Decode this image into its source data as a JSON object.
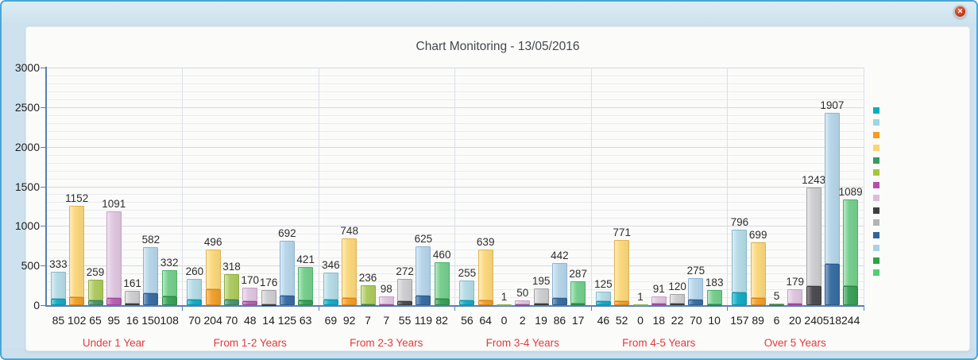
{
  "window": {
    "close_glyph": "✕"
  },
  "chart_data": {
    "type": "bar",
    "title": "Chart Monitoring - 13/05/2016",
    "subtitle": "",
    "xlabel": "",
    "ylabel": "",
    "ylim": [
      0,
      3000
    ],
    "ytick_major": [
      0,
      500,
      1000,
      1500,
      2000,
      2500,
      3000
    ],
    "ytick_minor_step": 100,
    "grid": "on",
    "legend_position": "right",
    "stacked": true,
    "categories": [
      "Under 1 Year",
      "From 1-2 Years",
      "From 2-3 Years",
      "From 3-4 Years",
      "From 4-5 Years",
      "Over 5 Years"
    ],
    "bars_per_group": 7,
    "groups": [
      {
        "label": "Under 1 Year",
        "bars": [
          {
            "bottom": 85,
            "top": 333
          },
          {
            "bottom": 102,
            "top": 1152
          },
          {
            "bottom": 65,
            "top": 259
          },
          {
            "bottom": 95,
            "top": 1091
          },
          {
            "bottom": 16,
            "top": 161
          },
          {
            "bottom": 150,
            "top": 582
          },
          {
            "bottom": 108,
            "top": 332
          }
        ]
      },
      {
        "label": "From 1-2 Years",
        "bars": [
          {
            "bottom": 70,
            "top": 260
          },
          {
            "bottom": 204,
            "top": 496
          },
          {
            "bottom": 70,
            "top": 318
          },
          {
            "bottom": 48,
            "top": 170
          },
          {
            "bottom": 14,
            "top": 176
          },
          {
            "bottom": 125,
            "top": 692
          },
          {
            "bottom": 63,
            "top": 421
          }
        ]
      },
      {
        "label": "From 2-3 Years",
        "bars": [
          {
            "bottom": 69,
            "top": 346
          },
          {
            "bottom": 92,
            "top": 748
          },
          {
            "bottom": 7,
            "top": 236
          },
          {
            "bottom": 7,
            "top": 98
          },
          {
            "bottom": 55,
            "top": 272
          },
          {
            "bottom": 119,
            "top": 625
          },
          {
            "bottom": 82,
            "top": 460
          }
        ]
      },
      {
        "label": "From 3-4 Years",
        "bars": [
          {
            "bottom": 56,
            "top": 255
          },
          {
            "bottom": 64,
            "top": 639
          },
          {
            "bottom": 0,
            "top": 1
          },
          {
            "bottom": 2,
            "top": 50
          },
          {
            "bottom": 19,
            "top": 195
          },
          {
            "bottom": 86,
            "top": 442
          },
          {
            "bottom": 17,
            "top": 287
          }
        ]
      },
      {
        "label": "From 4-5 Years",
        "bars": [
          {
            "bottom": 46,
            "top": 125
          },
          {
            "bottom": 52,
            "top": 771
          },
          {
            "bottom": 0,
            "top": 1
          },
          {
            "bottom": 18,
            "top": 91
          },
          {
            "bottom": 22,
            "top": 120
          },
          {
            "bottom": 70,
            "top": 275
          },
          {
            "bottom": 10,
            "top": 183
          }
        ]
      },
      {
        "label": "Over 5 Years",
        "bars": [
          {
            "bottom": 157,
            "top": 796
          },
          {
            "bottom": 89,
            "top": 699
          },
          {
            "bottom": 6,
            "top": 5
          },
          {
            "bottom": 20,
            "top": 179
          },
          {
            "bottom": 240,
            "top": 1243
          },
          {
            "bottom": 518,
            "top": 1907
          },
          {
            "bottom": 244,
            "top": 1089
          }
        ]
      }
    ],
    "colors": {
      "bottom_fill": [
        "#17afc7",
        "#f4a22c",
        "#4b9774",
        "#b864b2",
        "#4e4e52",
        "#3a6fa5",
        "#3ca35a"
      ],
      "bottom_border": [
        "#0e93a8",
        "#d9841a",
        "#3b7e5e",
        "#9c4897",
        "#3a3a3e",
        "#2d5a8c",
        "#2e8746"
      ],
      "top_fill": [
        "#b5dce7",
        "#fbd87d",
        "#aecb62",
        "#e0c7e0",
        "#cfcfd1",
        "#b7d6ea",
        "#76cf8e"
      ],
      "top_border": [
        "#86b9cc",
        "#e0b254",
        "#8fae3e",
        "#c5a0c4",
        "#a2a2a6",
        "#8cb4d6",
        "#4cb168"
      ],
      "legend_swatches": [
        "#00aec8",
        "#9fd5e2",
        "#f79b1e",
        "#fbd370",
        "#359b60",
        "#a5c73b",
        "#b44fae",
        "#ddbcd8",
        "#3f3f41",
        "#b3b3b5",
        "#2f659e",
        "#a8d2e8",
        "#2aa347",
        "#54cd73"
      ],
      "axis": "#5b7fb0",
      "grid_minor": "#e9ebf1",
      "grid_major": "#d4d8e2",
      "category_label": "#e23b3b",
      "title_text": "#43474c"
    }
  }
}
